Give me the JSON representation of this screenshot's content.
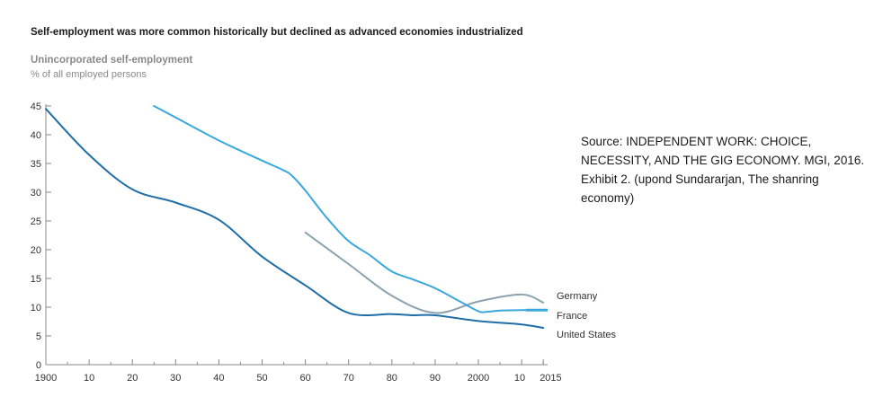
{
  "source_note": "Source: INDEPENDENT WORK: CHOICE, NECESSITY, AND THE GIG ECONOMY. MGI, 2016.  Exhibit 2. (upond Sundararjan, The shanring economy)",
  "chart_data": {
    "type": "line",
    "title": "Self-employment was more common historically but declined as advanced economies industrialized",
    "subtitle": "Unincorporated self-employment",
    "ylabel": "% of all employed persons",
    "xlabel": "",
    "xlim": [
      1900,
      2016
    ],
    "ylim": [
      0,
      45
    ],
    "yticks": [
      0,
      5,
      10,
      15,
      20,
      25,
      30,
      35,
      40,
      45
    ],
    "xticks": [
      {
        "value": 1900,
        "label": "1900"
      },
      {
        "value": 1910,
        "label": "10"
      },
      {
        "value": 1920,
        "label": "20"
      },
      {
        "value": 1930,
        "label": "30"
      },
      {
        "value": 1940,
        "label": "40"
      },
      {
        "value": 1950,
        "label": "50"
      },
      {
        "value": 1960,
        "label": "60"
      },
      {
        "value": 1970,
        "label": "70"
      },
      {
        "value": 1980,
        "label": "80"
      },
      {
        "value": 1990,
        "label": "90"
      },
      {
        "value": 2000,
        "label": "2000"
      },
      {
        "value": 2010,
        "label": "10"
      },
      {
        "value": 2015,
        "label": "2015"
      }
    ],
    "grid": false,
    "series": [
      {
        "name": "Germany",
        "color": "#8ca2ae",
        "x": [
          1960,
          1970,
          1980,
          1990,
          2000,
          2010,
          2015
        ],
        "y": [
          23.0,
          17.5,
          12.0,
          9.0,
          11.0,
          12.2,
          10.8
        ]
      },
      {
        "name": "France",
        "color": "#3aa8dc",
        "x": [
          1925,
          1930,
          1940,
          1950,
          1955,
          1957,
          1960,
          1965,
          1970,
          1975,
          1980,
          1985,
          1990,
          1995,
          2000,
          2002,
          2005,
          2010,
          2015
        ],
        "y": [
          45.0,
          43.0,
          39.0,
          35.5,
          33.8,
          32.8,
          30.3,
          25.5,
          21.5,
          19.0,
          16.2,
          14.8,
          13.3,
          11.3,
          9.3,
          9.2,
          9.4,
          9.5,
          9.5
        ]
      },
      {
        "name": "United States",
        "color": "#1f6ea8",
        "x": [
          1900,
          1910,
          1920,
          1930,
          1940,
          1950,
          1960,
          1970,
          1980,
          1985,
          1990,
          2000,
          2010,
          2015
        ],
        "y": [
          44.5,
          36.5,
          30.5,
          28.2,
          25.2,
          18.8,
          13.8,
          9.0,
          8.8,
          8.6,
          8.6,
          7.6,
          7.0,
          6.4
        ]
      }
    ]
  }
}
